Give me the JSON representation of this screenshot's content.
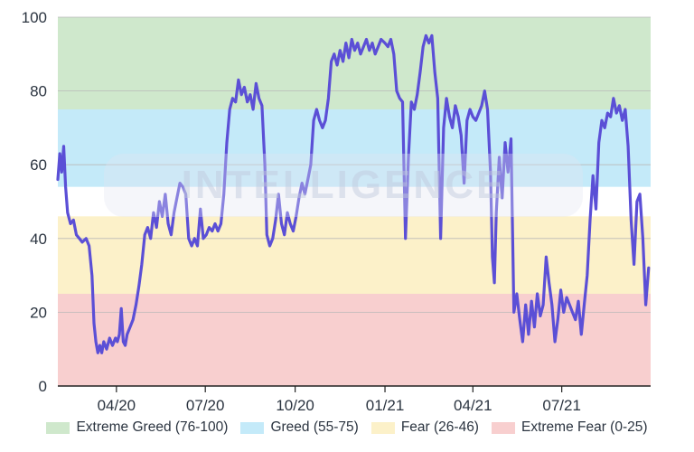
{
  "chart_data": {
    "type": "line",
    "y_ticks": [
      0,
      20,
      40,
      60,
      80,
      100
    ],
    "ylim": [
      0,
      100
    ],
    "xlim": [
      "2020-02-01",
      "2021-09-30"
    ],
    "x_ticks": [
      {
        "date": "2020-04-01",
        "label": "04/20"
      },
      {
        "date": "2020-07-01",
        "label": "07/20"
      },
      {
        "date": "2020-10-01",
        "label": "10/20"
      },
      {
        "date": "2021-01-01",
        "label": "01/21"
      },
      {
        "date": "2021-04-01",
        "label": "04/21"
      },
      {
        "date": "2021-07-01",
        "label": "07/21"
      }
    ],
    "bands": [
      {
        "name": "Extreme Greed (76-100)",
        "from": 75,
        "to": 100,
        "color": "#cfe8cc"
      },
      {
        "name": "Greed (55-75)",
        "from": 54,
        "to": 75,
        "color": "#c4eaf9"
      },
      {
        "name": "Fear (26-46)",
        "from": 25,
        "to": 46,
        "color": "#fcf1c9"
      },
      {
        "name": "Extreme Fear (0-25)",
        "from": 0,
        "to": 25,
        "color": "#f8cfcf"
      }
    ],
    "series": [
      {
        "color": "#5b4fd6",
        "points": [
          [
            "2020-02-01",
            56
          ],
          [
            "2020-02-03",
            63
          ],
          [
            "2020-02-05",
            58
          ],
          [
            "2020-02-07",
            65
          ],
          [
            "2020-02-09",
            54
          ],
          [
            "2020-02-11",
            47
          ],
          [
            "2020-02-14",
            44
          ],
          [
            "2020-02-17",
            45
          ],
          [
            "2020-02-20",
            41
          ],
          [
            "2020-02-23",
            40
          ],
          [
            "2020-02-26",
            39
          ],
          [
            "2020-03-01",
            40
          ],
          [
            "2020-03-04",
            38
          ],
          [
            "2020-03-07",
            30
          ],
          [
            "2020-03-09",
            17
          ],
          [
            "2020-03-11",
            12
          ],
          [
            "2020-03-13",
            9
          ],
          [
            "2020-03-15",
            11
          ],
          [
            "2020-03-17",
            9
          ],
          [
            "2020-03-19",
            12
          ],
          [
            "2020-03-22",
            10
          ],
          [
            "2020-03-25",
            13
          ],
          [
            "2020-03-28",
            11
          ],
          [
            "2020-03-31",
            13
          ],
          [
            "2020-04-02",
            12
          ],
          [
            "2020-04-04",
            14
          ],
          [
            "2020-04-06",
            21
          ],
          [
            "2020-04-08",
            12
          ],
          [
            "2020-04-10",
            11
          ],
          [
            "2020-04-12",
            14
          ],
          [
            "2020-04-15",
            16
          ],
          [
            "2020-04-18",
            18
          ],
          [
            "2020-04-21",
            22
          ],
          [
            "2020-04-24",
            27
          ],
          [
            "2020-04-27",
            33
          ],
          [
            "2020-04-30",
            41
          ],
          [
            "2020-05-03",
            43
          ],
          [
            "2020-05-06",
            40
          ],
          [
            "2020-05-09",
            47
          ],
          [
            "2020-05-12",
            43
          ],
          [
            "2020-05-15",
            50
          ],
          [
            "2020-05-18",
            46
          ],
          [
            "2020-05-21",
            52
          ],
          [
            "2020-05-24",
            44
          ],
          [
            "2020-05-27",
            41
          ],
          [
            "2020-05-30",
            47
          ],
          [
            "2020-06-02",
            51
          ],
          [
            "2020-06-05",
            55
          ],
          [
            "2020-06-08",
            54
          ],
          [
            "2020-06-11",
            52
          ],
          [
            "2020-06-14",
            40
          ],
          [
            "2020-06-17",
            38
          ],
          [
            "2020-06-20",
            40
          ],
          [
            "2020-06-23",
            38
          ],
          [
            "2020-06-26",
            48
          ],
          [
            "2020-06-29",
            40
          ],
          [
            "2020-07-02",
            41
          ],
          [
            "2020-07-05",
            43
          ],
          [
            "2020-07-08",
            42
          ],
          [
            "2020-07-11",
            44
          ],
          [
            "2020-07-14",
            42
          ],
          [
            "2020-07-17",
            44
          ],
          [
            "2020-07-20",
            52
          ],
          [
            "2020-07-23",
            66
          ],
          [
            "2020-07-26",
            75
          ],
          [
            "2020-07-29",
            78
          ],
          [
            "2020-08-01",
            77
          ],
          [
            "2020-08-04",
            83
          ],
          [
            "2020-08-07",
            79
          ],
          [
            "2020-08-10",
            81
          ],
          [
            "2020-08-13",
            77
          ],
          [
            "2020-08-16",
            79
          ],
          [
            "2020-08-19",
            75
          ],
          [
            "2020-08-22",
            82
          ],
          [
            "2020-08-25",
            78
          ],
          [
            "2020-08-28",
            76
          ],
          [
            "2020-08-31",
            60
          ],
          [
            "2020-09-02",
            41
          ],
          [
            "2020-09-05",
            38
          ],
          [
            "2020-09-08",
            40
          ],
          [
            "2020-09-11",
            45
          ],
          [
            "2020-09-14",
            52
          ],
          [
            "2020-09-17",
            44
          ],
          [
            "2020-09-20",
            41
          ],
          [
            "2020-09-23",
            47
          ],
          [
            "2020-09-26",
            44
          ],
          [
            "2020-09-29",
            42
          ],
          [
            "2020-10-02",
            46
          ],
          [
            "2020-10-05",
            51
          ],
          [
            "2020-10-08",
            55
          ],
          [
            "2020-10-11",
            52
          ],
          [
            "2020-10-14",
            56
          ],
          [
            "2020-10-17",
            60
          ],
          [
            "2020-10-20",
            72
          ],
          [
            "2020-10-23",
            75
          ],
          [
            "2020-10-26",
            72
          ],
          [
            "2020-10-29",
            70
          ],
          [
            "2020-11-01",
            72
          ],
          [
            "2020-11-04",
            78
          ],
          [
            "2020-11-07",
            88
          ],
          [
            "2020-11-10",
            90
          ],
          [
            "2020-11-13",
            87
          ],
          [
            "2020-11-16",
            91
          ],
          [
            "2020-11-19",
            88
          ],
          [
            "2020-11-22",
            93
          ],
          [
            "2020-11-25",
            89
          ],
          [
            "2020-11-28",
            94
          ],
          [
            "2020-12-01",
            91
          ],
          [
            "2020-12-04",
            93
          ],
          [
            "2020-12-07",
            90
          ],
          [
            "2020-12-10",
            92
          ],
          [
            "2020-12-13",
            94
          ],
          [
            "2020-12-16",
            91
          ],
          [
            "2020-12-19",
            93
          ],
          [
            "2020-12-22",
            90
          ],
          [
            "2020-12-25",
            92
          ],
          [
            "2020-12-28",
            94
          ],
          [
            "2021-01-01",
            93
          ],
          [
            "2021-01-04",
            92
          ],
          [
            "2021-01-07",
            94
          ],
          [
            "2021-01-10",
            90
          ],
          [
            "2021-01-13",
            80
          ],
          [
            "2021-01-16",
            78
          ],
          [
            "2021-01-19",
            77
          ],
          [
            "2021-01-22",
            40
          ],
          [
            "2021-01-25",
            62
          ],
          [
            "2021-01-28",
            77
          ],
          [
            "2021-01-31",
            75
          ],
          [
            "2021-02-03",
            79
          ],
          [
            "2021-02-06",
            85
          ],
          [
            "2021-02-09",
            92
          ],
          [
            "2021-02-12",
            95
          ],
          [
            "2021-02-15",
            93
          ],
          [
            "2021-02-18",
            95
          ],
          [
            "2021-02-21",
            85
          ],
          [
            "2021-02-24",
            78
          ],
          [
            "2021-02-27",
            40
          ],
          [
            "2021-03-02",
            70
          ],
          [
            "2021-03-05",
            78
          ],
          [
            "2021-03-08",
            73
          ],
          [
            "2021-03-11",
            70
          ],
          [
            "2021-03-14",
            76
          ],
          [
            "2021-03-17",
            73
          ],
          [
            "2021-03-20",
            68
          ],
          [
            "2021-03-23",
            55
          ],
          [
            "2021-03-26",
            72
          ],
          [
            "2021-03-29",
            75
          ],
          [
            "2021-04-01",
            73
          ],
          [
            "2021-04-04",
            72
          ],
          [
            "2021-04-07",
            74
          ],
          [
            "2021-04-10",
            76
          ],
          [
            "2021-04-13",
            80
          ],
          [
            "2021-04-16",
            75
          ],
          [
            "2021-04-19",
            58
          ],
          [
            "2021-04-21",
            35
          ],
          [
            "2021-04-23",
            28
          ],
          [
            "2021-04-25",
            47
          ],
          [
            "2021-04-28",
            62
          ],
          [
            "2021-05-01",
            51
          ],
          [
            "2021-05-04",
            66
          ],
          [
            "2021-05-07",
            58
          ],
          [
            "2021-05-10",
            67
          ],
          [
            "2021-05-13",
            20
          ],
          [
            "2021-05-16",
            25
          ],
          [
            "2021-05-19",
            18
          ],
          [
            "2021-05-22",
            12
          ],
          [
            "2021-05-25",
            22
          ],
          [
            "2021-05-28",
            14
          ],
          [
            "2021-05-31",
            23
          ],
          [
            "2021-06-03",
            16
          ],
          [
            "2021-06-06",
            25
          ],
          [
            "2021-06-09",
            19
          ],
          [
            "2021-06-12",
            22
          ],
          [
            "2021-06-15",
            35
          ],
          [
            "2021-06-18",
            28
          ],
          [
            "2021-06-21",
            22
          ],
          [
            "2021-06-24",
            12
          ],
          [
            "2021-06-27",
            18
          ],
          [
            "2021-06-30",
            26
          ],
          [
            "2021-07-03",
            20
          ],
          [
            "2021-07-06",
            24
          ],
          [
            "2021-07-09",
            22
          ],
          [
            "2021-07-12",
            20
          ],
          [
            "2021-07-15",
            18
          ],
          [
            "2021-07-18",
            23
          ],
          [
            "2021-07-21",
            14
          ],
          [
            "2021-07-24",
            22
          ],
          [
            "2021-07-27",
            30
          ],
          [
            "2021-07-30",
            45
          ],
          [
            "2021-08-02",
            57
          ],
          [
            "2021-08-05",
            48
          ],
          [
            "2021-08-08",
            66
          ],
          [
            "2021-08-11",
            72
          ],
          [
            "2021-08-14",
            70
          ],
          [
            "2021-08-17",
            74
          ],
          [
            "2021-08-20",
            73
          ],
          [
            "2021-08-23",
            78
          ],
          [
            "2021-08-26",
            74
          ],
          [
            "2021-08-29",
            76
          ],
          [
            "2021-09-01",
            72
          ],
          [
            "2021-09-04",
            75
          ],
          [
            "2021-09-07",
            65
          ],
          [
            "2021-09-10",
            45
          ],
          [
            "2021-09-13",
            33
          ],
          [
            "2021-09-16",
            50
          ],
          [
            "2021-09-19",
            52
          ],
          [
            "2021-09-22",
            40
          ],
          [
            "2021-09-25",
            22
          ],
          [
            "2021-09-28",
            32
          ]
        ]
      }
    ],
    "watermark": "INTELLIGENCE"
  }
}
